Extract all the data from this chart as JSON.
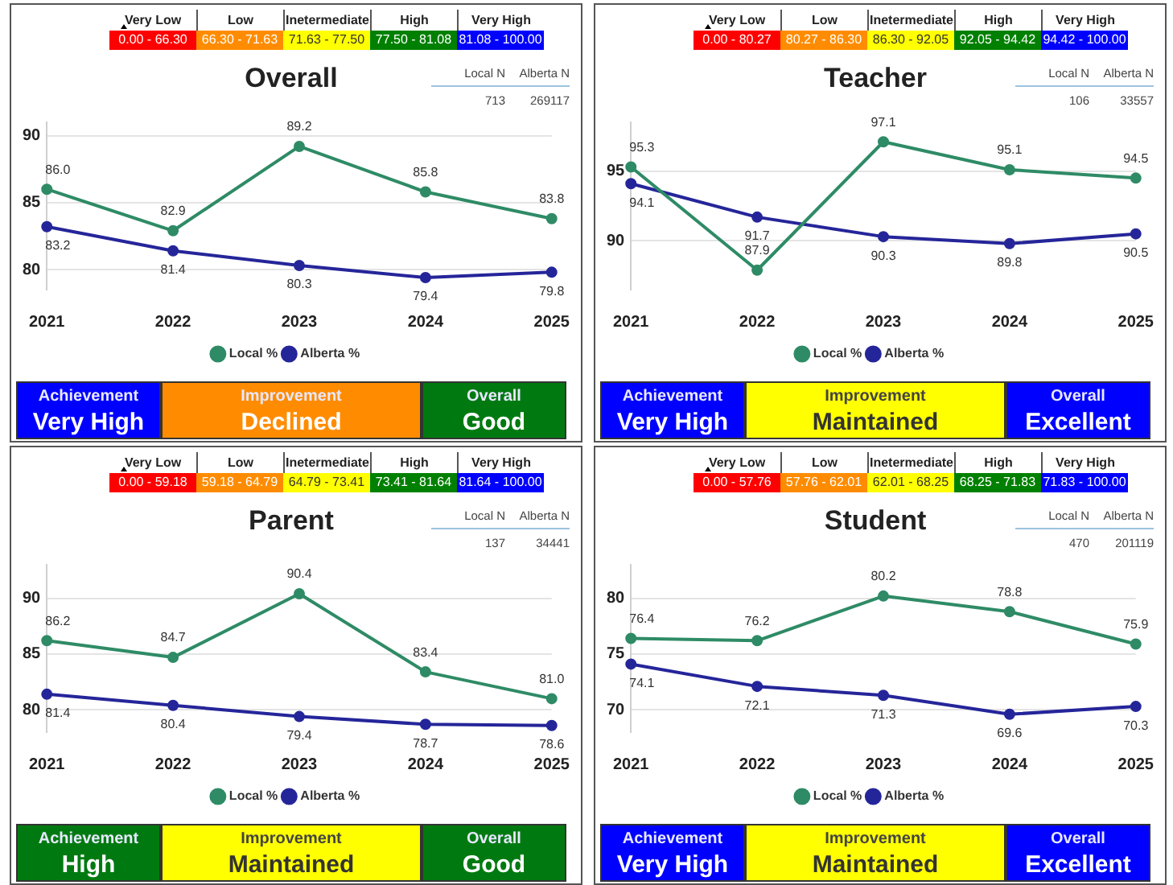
{
  "chart_data": [
    {
      "type": "other",
      "categories": [
        "Very Low",
        "Low",
        "Inetermediate",
        "High",
        "Very High"
      ],
      "annotations": [
        "0.00 - 66.30",
        "66.30 - 71.63",
        "71.63 - 77.50",
        "77.50 - 81.08",
        "81.08 - 100.00",
        "Local N",
        "Alberta N",
        "713",
        "269117"
      ],
      "colors": [
        "#ff0000",
        "#ff8c00",
        "#ffff00",
        "#008000",
        "#0000ff"
      ]
    },
    {
      "type": "line",
      "title": "Overall",
      "categories": [
        "2021",
        "2022",
        "2023",
        "2024",
        "2025"
      ],
      "ylim": [
        78.5,
        91
      ],
      "yticks": [
        80,
        85,
        90
      ],
      "grid": "y",
      "legend": "bottom",
      "marker": "circle",
      "series": [
        {
          "name": "Local %",
          "color": "#2e8b66",
          "values": [
            86.0,
            82.9,
            89.2,
            85.8,
            83.8
          ],
          "value_labels": [
            "86.0",
            "82.9",
            "89.2",
            "85.8",
            "83.8"
          ]
        },
        {
          "name": "Alberta %",
          "color": "#25259a",
          "values": [
            83.2,
            81.4,
            80.3,
            79.4,
            79.8
          ],
          "value_labels": [
            "83.2",
            "81.4",
            "80.3",
            "79.4",
            "79.8"
          ]
        }
      ]
    },
    {
      "type": "other",
      "categories": [
        "Achievement",
        "Improvement",
        "Overall"
      ],
      "annotations": [
        "Very High",
        "Declined",
        "Good"
      ],
      "colors": [
        "#0000ff",
        "#ff8c00",
        "#007a10"
      ]
    },
    {
      "type": "other",
      "categories": [
        "Very Low",
        "Low",
        "Inetermediate",
        "High",
        "Very High"
      ],
      "annotations": [
        "0.00 - 80.27",
        "80.27 - 86.30",
        "86.30 - 92.05",
        "92.05 - 94.42",
        "94.42 - 100.00",
        "Local N",
        "Alberta N",
        "106",
        "33557"
      ],
      "colors": [
        "#ff0000",
        "#ff8c00",
        "#ffff00",
        "#008000",
        "#0000ff"
      ]
    },
    {
      "type": "line",
      "title": "Teacher",
      "categories": [
        "2021",
        "2022",
        "2023",
        "2024",
        "2025"
      ],
      "ylim": [
        86.5,
        98.5
      ],
      "yticks": [
        90,
        95
      ],
      "grid": "y",
      "legend": "bottom",
      "marker": "circle",
      "series": [
        {
          "name": "Local %",
          "color": "#2e8b66",
          "values": [
            95.3,
            87.9,
            97.1,
            95.1,
            94.5
          ],
          "value_labels": [
            "95.3",
            "87.9",
            "97.1",
            "95.1",
            "94.5"
          ]
        },
        {
          "name": "Alberta %",
          "color": "#25259a",
          "values": [
            94.1,
            91.7,
            90.3,
            89.8,
            90.5
          ],
          "value_labels": [
            "94.1",
            "91.7",
            "90.3",
            "89.8",
            "90.5"
          ]
        }
      ]
    },
    {
      "type": "other",
      "categories": [
        "Achievement",
        "Improvement",
        "Overall"
      ],
      "annotations": [
        "Very High",
        "Maintained",
        "Excellent"
      ],
      "colors": [
        "#0000ff",
        "#ffff00",
        "#0000ff"
      ]
    },
    {
      "type": "other",
      "categories": [
        "Very Low",
        "Low",
        "Inetermediate",
        "High",
        "Very High"
      ],
      "annotations": [
        "0.00 - 59.18",
        "59.18 - 64.79",
        "64.79 - 73.41",
        "73.41 - 81.64",
        "81.64 - 100.00",
        "Local N",
        "Alberta N",
        "137",
        "34441"
      ],
      "colors": [
        "#ff0000",
        "#ff8c00",
        "#ffff00",
        "#008000",
        "#0000ff"
      ]
    },
    {
      "type": "line",
      "title": "Parent",
      "categories": [
        "2021",
        "2022",
        "2023",
        "2024",
        "2025"
      ],
      "ylim": [
        78,
        93
      ],
      "yticks": [
        80,
        85,
        90
      ],
      "grid": "y",
      "legend": "bottom",
      "marker": "circle",
      "series": [
        {
          "name": "Local %",
          "color": "#2e8b66",
          "values": [
            86.2,
            84.7,
            90.4,
            83.4,
            81.0
          ],
          "value_labels": [
            "86.2",
            "84.7",
            "90.4",
            "83.4",
            "81.0"
          ]
        },
        {
          "name": "Alberta %",
          "color": "#25259a",
          "values": [
            81.4,
            80.4,
            79.4,
            78.7,
            78.6
          ],
          "value_labels": [
            "81.4",
            "80.4",
            "79.4",
            "78.7",
            "78.6"
          ]
        }
      ]
    },
    {
      "type": "other",
      "categories": [
        "Achievement",
        "Improvement",
        "Overall"
      ],
      "annotations": [
        "High",
        "Maintained",
        "Good"
      ],
      "colors": [
        "#007a10",
        "#ffff00",
        "#007a10"
      ]
    },
    {
      "type": "other",
      "categories": [
        "Very Low",
        "Low",
        "Inetermediate",
        "High",
        "Very High"
      ],
      "annotations": [
        "0.00 - 57.76",
        "57.76 - 62.01",
        "62.01 - 68.25",
        "68.25 - 71.83",
        "71.83 - 100.00",
        "Local N",
        "Alberta N",
        "470",
        "201119"
      ],
      "colors": [
        "#ff0000",
        "#ff8c00",
        "#ffff00",
        "#008000",
        "#0000ff"
      ]
    },
    {
      "type": "line",
      "title": "Student",
      "categories": [
        "2021",
        "2022",
        "2023",
        "2024",
        "2025"
      ],
      "ylim": [
        68,
        83
      ],
      "yticks": [
        70,
        75,
        80
      ],
      "grid": "y",
      "legend": "bottom",
      "marker": "circle",
      "series": [
        {
          "name": "Local %",
          "color": "#2e8b66",
          "values": [
            76.4,
            76.2,
            80.2,
            78.8,
            75.9
          ],
          "value_labels": [
            "76.4",
            "76.2",
            "80.2",
            "78.8",
            "75.9"
          ]
        },
        {
          "name": "Alberta %",
          "color": "#25259a",
          "values": [
            74.1,
            72.1,
            71.3,
            69.6,
            70.3
          ],
          "value_labels": [
            "74.1",
            "72.1",
            "71.3",
            "69.6",
            "70.3"
          ]
        }
      ]
    },
    {
      "type": "other",
      "categories": [
        "Achievement",
        "Improvement",
        "Overall"
      ],
      "annotations": [
        "Very High",
        "Maintained",
        "Excellent"
      ],
      "colors": [
        "#0000ff",
        "#ffff00",
        "#0000ff"
      ]
    }
  ]
}
